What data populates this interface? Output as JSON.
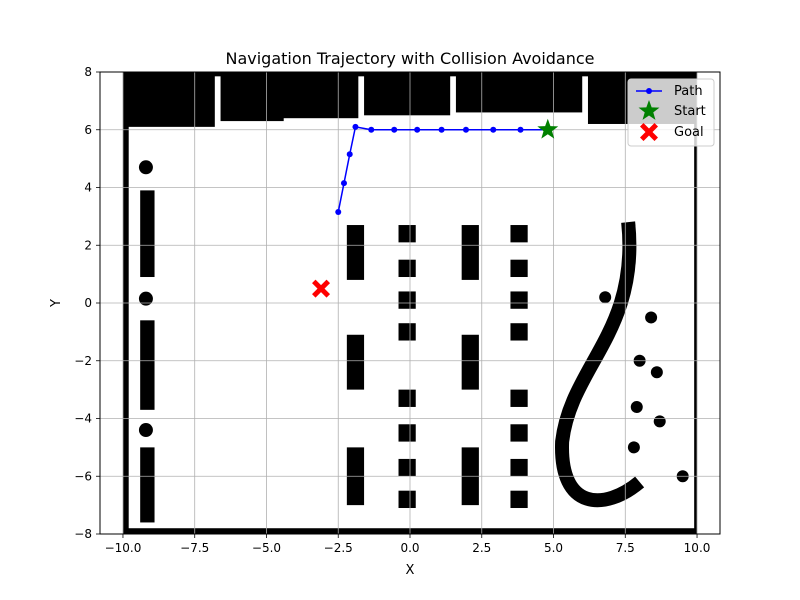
{
  "chart_data": {
    "type": "line",
    "title": "Navigation Trajectory with Collision Avoidance",
    "xlabel": "X",
    "ylabel": "Y",
    "xlim": [
      -10.8,
      10.8
    ],
    "ylim": [
      -8,
      8
    ],
    "xticks": [
      -10.0,
      -7.5,
      -5.0,
      -2.5,
      0.0,
      2.5,
      5.0,
      7.5,
      10.0
    ],
    "xtick_labels": [
      "−10.0",
      "−7.5",
      "−5.0",
      "−2.5",
      "0.0",
      "2.5",
      "5.0",
      "7.5",
      "10.0"
    ],
    "yticks": [
      -8,
      -6,
      -4,
      -2,
      0,
      2,
      4,
      6,
      8
    ],
    "ytick_labels": [
      "−8",
      "−6",
      "−4",
      "−2",
      "0",
      "2",
      "4",
      "6",
      "8"
    ],
    "grid": true,
    "legend_position": "top-right",
    "background": "occupancy grid map (black = obstacles, white = free space)",
    "series": [
      {
        "name": "Path",
        "color": "#0000ff",
        "marker": "circle",
        "points": [
          [
            4.8,
            6.0
          ],
          [
            3.85,
            6.0
          ],
          [
            2.9,
            6.0
          ],
          [
            1.95,
            6.0
          ],
          [
            1.1,
            6.0
          ],
          [
            0.25,
            6.0
          ],
          [
            -0.55,
            6.0
          ],
          [
            -1.35,
            6.0
          ],
          [
            -1.9,
            6.1
          ],
          [
            -2.1,
            5.15
          ],
          [
            -2.3,
            4.15
          ],
          [
            -2.5,
            3.15
          ]
        ]
      }
    ],
    "markers": [
      {
        "name": "Start",
        "x": 4.8,
        "y": 6.0,
        "shape": "star",
        "color": "#008000"
      },
      {
        "name": "Goal",
        "x": -3.1,
        "y": 0.5,
        "shape": "X",
        "color": "#ff0000"
      }
    ]
  }
}
